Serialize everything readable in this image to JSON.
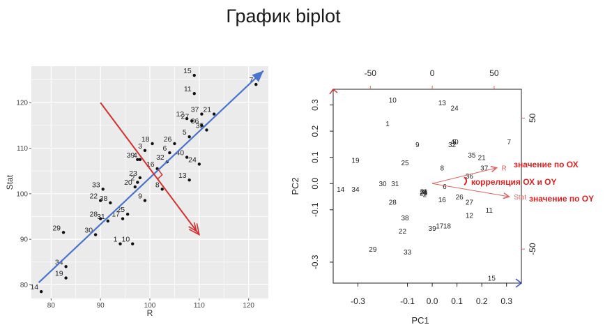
{
  "slide": {
    "title": "График biplot"
  },
  "colors": {
    "blue": "#4a72cf",
    "red": "#d62f2f",
    "pcaRed": "#e06060",
    "annotRed": "#e02020",
    "grid": "#ffffff",
    "panel": "#ebebeb"
  },
  "chart_data": [
    {
      "type": "scatter",
      "title": "",
      "xlabel": "R",
      "ylabel": "Stat",
      "xlim": [
        76,
        124
      ],
      "ylim": [
        77,
        128
      ],
      "xticks": [
        80,
        90,
        100,
        110,
        120
      ],
      "yticks": [
        80,
        90,
        100,
        110,
        120
      ],
      "grid": true,
      "points": [
        {
          "label": "1",
          "x": 94,
          "y": 89
        },
        {
          "label": "2",
          "x": 97.5,
          "y": 102.5
        },
        {
          "label": "3",
          "x": 99,
          "y": 109.5
        },
        {
          "label": "4",
          "x": 98,
          "y": 107.5
        },
        {
          "label": "5",
          "x": 108,
          "y": 112.5
        },
        {
          "label": "6",
          "x": 104,
          "y": 109
        },
        {
          "label": "7",
          "x": 121.5,
          "y": 124
        },
        {
          "label": "8",
          "x": 102.5,
          "y": 101
        },
        {
          "label": "9",
          "x": 99,
          "y": 98.5
        },
        {
          "label": "10",
          "x": 96.5,
          "y": 89
        },
        {
          "label": "11",
          "x": 109,
          "y": 122
        },
        {
          "label": "12",
          "x": 107.5,
          "y": 116.5
        },
        {
          "label": "13",
          "x": 108,
          "y": 103
        },
        {
          "label": "14",
          "x": 78,
          "y": 78.5
        },
        {
          "label": "15",
          "x": 109,
          "y": 126
        },
        {
          "label": "16",
          "x": 101.5,
          "y": 105.5
        },
        {
          "label": "17",
          "x": 94.5,
          "y": 94.5
        },
        {
          "label": "18",
          "x": 100.5,
          "y": 111
        },
        {
          "label": "19",
          "x": 83,
          "y": 81.5
        },
        {
          "label": "20",
          "x": 97,
          "y": 101.5
        },
        {
          "label": "21",
          "x": 113,
          "y": 117.5
        },
        {
          "label": "22",
          "x": 90,
          "y": 98.5
        },
        {
          "label": "23",
          "x": 98,
          "y": 103.5
        },
        {
          "label": "24",
          "x": 110,
          "y": 106.5
        },
        {
          "label": "25",
          "x": 95.5,
          "y": 95.5
        },
        {
          "label": "26",
          "x": 105,
          "y": 111
        },
        {
          "label": "27",
          "x": 108.5,
          "y": 116
        },
        {
          "label": "28",
          "x": 90,
          "y": 94.5
        },
        {
          "label": "29",
          "x": 82.5,
          "y": 91.5
        },
        {
          "label": "30",
          "x": 89,
          "y": 91
        },
        {
          "label": "31",
          "x": 91.5,
          "y": 94
        },
        {
          "label": "32",
          "x": 103.5,
          "y": 107
        },
        {
          "label": "33",
          "x": 90.5,
          "y": 101
        },
        {
          "label": "34",
          "x": 83,
          "y": 84
        },
        {
          "label": "35",
          "x": 111.5,
          "y": 114
        },
        {
          "label": "36",
          "x": 110.5,
          "y": 115
        },
        {
          "label": "37",
          "x": 110.5,
          "y": 117.5
        },
        {
          "label": "38",
          "x": 92,
          "y": 98
        },
        {
          "label": "39",
          "x": 97.5,
          "y": 107.5
        },
        {
          "label": "40",
          "x": 107.5,
          "y": 108
        }
      ],
      "arrows": [
        {
          "from": [
            77.5,
            80.5
          ],
          "to": [
            123,
            127
          ]
        },
        {
          "from": [
            90,
            120
          ],
          "to": [
            110,
            91
          ]
        }
      ]
    },
    {
      "type": "scatter",
      "title": "",
      "xlabel": "PC1",
      "ylabel": "PC2",
      "xlim": [
        -0.4,
        0.36
      ],
      "ylim": [
        -0.38,
        0.36
      ],
      "xticks": [
        -0.3,
        -0.1,
        0.0,
        0.1,
        0.2,
        0.3
      ],
      "xticklabels": [
        "-0.3",
        "-0.1",
        "0.0",
        "0.1",
        "0.2",
        "0.3"
      ],
      "yticks": [
        -0.3,
        -0.1,
        0.0,
        0.1,
        0.2,
        0.3
      ],
      "yticklabels": [
        "-0.3",
        "-0.1",
        "0.0",
        "0.1",
        "0.2",
        "0.3"
      ],
      "top_ticks": [
        -50,
        0,
        50
      ],
      "right_ticks": [
        50,
        -50
      ],
      "points": [
        {
          "label": "1",
          "x": -0.18,
          "y": 0.23
        },
        {
          "label": "2",
          "x": -0.03,
          "y": -0.04
        },
        {
          "label": "3",
          "x": -0.04,
          "y": -0.03
        },
        {
          "label": "4",
          "x": -0.03,
          "y": -0.03
        },
        {
          "label": "5",
          "x": 0.09,
          "y": 0.16
        },
        {
          "label": "6",
          "x": 0.05,
          "y": -0.01
        },
        {
          "label": "7",
          "x": 0.31,
          "y": 0.16
        },
        {
          "label": "8",
          "x": 0.04,
          "y": 0.06
        },
        {
          "label": "9",
          "x": -0.06,
          "y": 0.15
        },
        {
          "label": "10",
          "x": -0.16,
          "y": 0.32
        },
        {
          "label": "11",
          "x": 0.23,
          "y": -0.1
        },
        {
          "label": "12",
          "x": 0.15,
          "y": -0.12
        },
        {
          "label": "13",
          "x": 0.04,
          "y": 0.31
        },
        {
          "label": "14",
          "x": -0.37,
          "y": -0.02
        },
        {
          "label": "15",
          "x": 0.24,
          "y": -0.36
        },
        {
          "label": "16",
          "x": 0.04,
          "y": -0.06
        },
        {
          "label": "17",
          "x": 0.03,
          "y": -0.16
        },
        {
          "label": "18",
          "x": 0.06,
          "y": -0.16
        },
        {
          "label": "19",
          "x": -0.31,
          "y": 0.09
        },
        {
          "label": "20",
          "x": -0.035,
          "y": -0.035
        },
        {
          "label": "21",
          "x": 0.2,
          "y": 0.1
        },
        {
          "label": "22",
          "x": -0.12,
          "y": -0.18
        },
        {
          "label": "23",
          "x": -0.035,
          "y": -0.03
        },
        {
          "label": "24",
          "x": 0.09,
          "y": 0.29
        },
        {
          "label": "25",
          "x": -0.11,
          "y": 0.08
        },
        {
          "label": "26",
          "x": 0.11,
          "y": -0.05
        },
        {
          "label": "27",
          "x": 0.15,
          "y": -0.07
        },
        {
          "label": "28",
          "x": -0.16,
          "y": -0.07
        },
        {
          "label": "29",
          "x": -0.24,
          "y": -0.25
        },
        {
          "label": "30",
          "x": -0.2,
          "y": 0.0
        },
        {
          "label": "31",
          "x": -0.15,
          "y": 0.0
        },
        {
          "label": "32",
          "x": 0.08,
          "y": 0.15
        },
        {
          "label": "33",
          "x": -0.1,
          "y": -0.26
        },
        {
          "label": "34",
          "x": -0.31,
          "y": -0.02
        },
        {
          "label": "35",
          "x": 0.16,
          "y": 0.11
        },
        {
          "label": "36",
          "x": 0.15,
          "y": 0.03
        },
        {
          "label": "37",
          "x": 0.21,
          "y": 0.06
        },
        {
          "label": "38",
          "x": -0.11,
          "y": -0.13
        },
        {
          "label": "39",
          "x": 0.0,
          "y": -0.17
        },
        {
          "label": "40",
          "x": 0.09,
          "y": 0.16
        }
      ],
      "vectors": [
        {
          "label": "R",
          "x": 0.26,
          "y": 0.06
        },
        {
          "label": "Stat",
          "x": 0.31,
          "y": -0.05
        }
      ],
      "annotations": [
        "значение по ОХ",
        "корреляция ОХ и ОY",
        "значение по ОY"
      ]
    }
  ]
}
